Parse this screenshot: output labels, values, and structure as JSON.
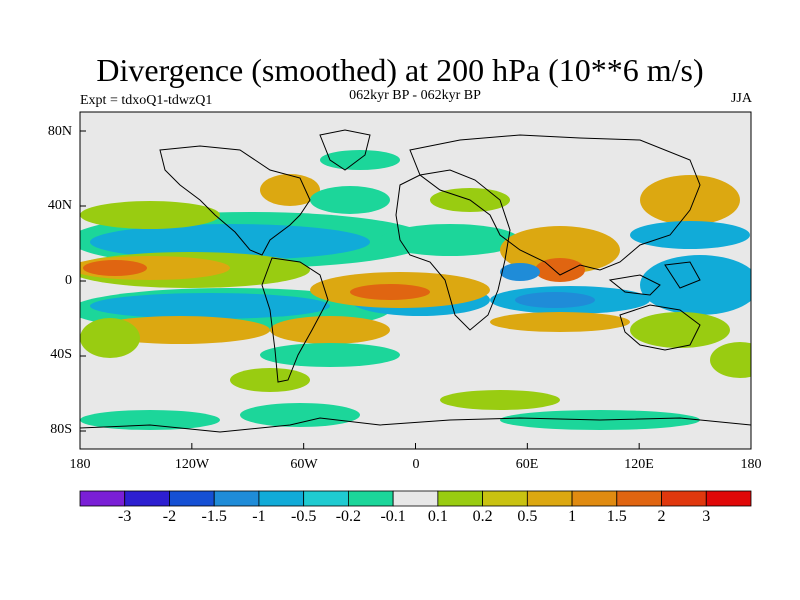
{
  "title": "Divergence (smoothed) at 200 hPa (10**6 m/s)",
  "subtitle": "062kyr BP - 062kyr BP",
  "experiment": "Expt = tdxoQ1-tdwzQ1",
  "season": "JJA",
  "lat_ticks": [
    "80N",
    "40N",
    "0",
    "40S",
    "80S"
  ],
  "lon_ticks": [
    "180",
    "120W",
    "60W",
    "0",
    "60E",
    "120E",
    "180"
  ],
  "colorbar": {
    "labels": [
      "-3",
      "-2",
      "-1.5",
      "-1",
      "-0.5",
      "-0.2",
      "-0.1",
      "0.1",
      "0.2",
      "0.5",
      "1",
      "1.5",
      "2",
      "3"
    ],
    "colors": [
      "#7a1fd6",
      "#2d1fd1",
      "#1550d4",
      "#1f8cd8",
      "#11abd8",
      "#1fcbd1",
      "#1cd69a",
      "#e8e8e8",
      "#99cc11",
      "#c9c211",
      "#dca811",
      "#e08b11",
      "#e06511",
      "#e0380e",
      "#e00808"
    ]
  },
  "colors": {
    "background": "#e8e8e8",
    "neg1": "#1cd69a",
    "neg2": "#11abd8",
    "neg3": "#1f8cd8",
    "pos1": "#99cc11",
    "pos2": "#dca811",
    "pos3": "#e06511",
    "coast": "#000000"
  }
}
